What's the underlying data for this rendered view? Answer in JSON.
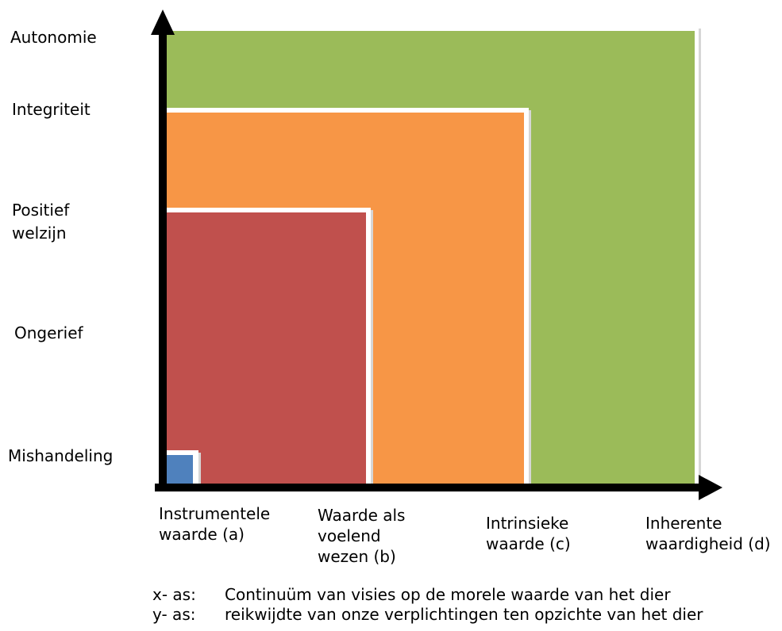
{
  "y_axis": {
    "levels": [
      {
        "lines": [
          "Autonomie"
        ]
      },
      {
        "lines": [
          "Integriteit"
        ]
      },
      {
        "lines": [
          "Positief",
          "welzijn"
        ]
      },
      {
        "lines": [
          "Ongerief"
        ]
      },
      {
        "lines": [
          "Mishandeling"
        ]
      }
    ]
  },
  "x_axis": {
    "categories": [
      {
        "lines": [
          "Instrumentele",
          "waarde (a)"
        ]
      },
      {
        "lines": [
          "Waarde als",
          "voelend",
          "wezen (b)"
        ]
      },
      {
        "lines": [
          "Intrinsieke",
          "waarde (c)"
        ]
      },
      {
        "lines": [
          "Inherente",
          "waardigheid (d)"
        ]
      }
    ]
  },
  "legend": {
    "x": {
      "key": "x- as:",
      "text": "Continuüm van visies op de morele waarde van het dier"
    },
    "y": {
      "key": "y- as:",
      "text": "reikwijdte van onze verplichtingen ten opzichte van het dier"
    }
  },
  "regions": {
    "a": {
      "color": "#4F81BD"
    },
    "b": {
      "color": "#C0504D"
    },
    "c": {
      "color": "#F79646"
    },
    "d": {
      "color": "#9BBB59"
    }
  },
  "region_border_color": "#FFFFFF",
  "region_shadow_color": "#D6D6D6",
  "axis_color": "#000000"
}
